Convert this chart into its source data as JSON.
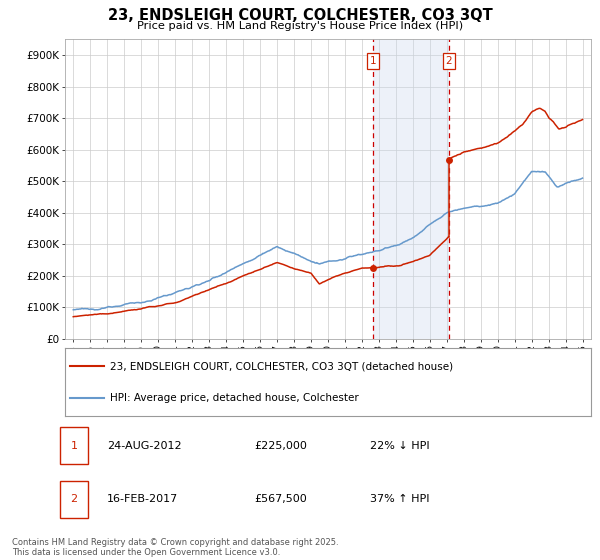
{
  "title": "23, ENDSLEIGH COURT, COLCHESTER, CO3 3QT",
  "subtitle": "Price paid vs. HM Land Registry's House Price Index (HPI)",
  "ylabel_ticks": [
    "£0",
    "£100K",
    "£200K",
    "£300K",
    "£400K",
    "£500K",
    "£600K",
    "£700K",
    "£800K",
    "£900K"
  ],
  "ytick_values": [
    0,
    100000,
    200000,
    300000,
    400000,
    500000,
    600000,
    700000,
    800000,
    900000
  ],
  "ylim": [
    0,
    950000
  ],
  "xlim_start": 1994.5,
  "xlim_end": 2025.5,
  "xtick_years": [
    1995,
    1996,
    1997,
    1998,
    1999,
    2000,
    2001,
    2002,
    2003,
    2004,
    2005,
    2006,
    2007,
    2008,
    2009,
    2010,
    2011,
    2012,
    2013,
    2014,
    2015,
    2016,
    2017,
    2018,
    2019,
    2020,
    2021,
    2022,
    2023,
    2024,
    2025
  ],
  "hpi_color": "#6699cc",
  "price_color": "#cc2200",
  "dot_color": "#cc2200",
  "sale1_x": 2012.65,
  "sale1_y": 225000,
  "sale2_x": 2017.12,
  "sale2_y": 567500,
  "vline1_x": 2012.65,
  "vline2_x": 2017.12,
  "shade_color": "#ccd9ee",
  "shade_alpha": 0.35,
  "legend_label_price": "23, ENDSLEIGH COURT, COLCHESTER, CO3 3QT (detached house)",
  "legend_label_hpi": "HPI: Average price, detached house, Colchester",
  "annotation1_label": "1",
  "annotation2_label": "2",
  "ann1_date": "24-AUG-2012",
  "ann1_price": "£225,000",
  "ann1_hpi": "22% ↓ HPI",
  "ann2_date": "16-FEB-2017",
  "ann2_price": "£567,500",
  "ann2_hpi": "37% ↑ HPI",
  "footer": "Contains HM Land Registry data © Crown copyright and database right 2025.\nThis data is licensed under the Open Government Licence v3.0.",
  "background_color": "#ffffff",
  "grid_color": "#cccccc"
}
